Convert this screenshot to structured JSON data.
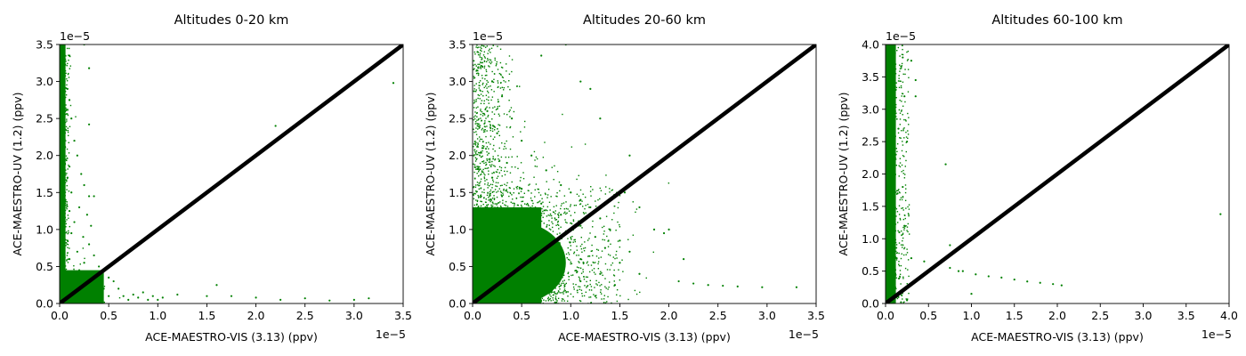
{
  "figure": {
    "panels": [
      {
        "title": "Altitudes 0-20 km",
        "xlabel": "ACE-MAESTRO-VIS (3.13) (ppv)",
        "ylabel": "ACE-MAESTRO-UV (1.2) (ppv)",
        "x_offset_text": "1e−5",
        "y_offset_text": "1e−5",
        "x_tick_labels": [
          "0.0",
          "0.5",
          "1.0",
          "1.5",
          "2.0",
          "2.5",
          "3.0",
          "3.5"
        ],
        "y_tick_labels": [
          "0.0",
          "0.5",
          "1.0",
          "1.5",
          "2.0",
          "2.5",
          "3.0",
          "3.5"
        ]
      },
      {
        "title": "Altitudes 20-60 km",
        "xlabel": "ACE-MAESTRO-VIS (3.13) (ppv)",
        "ylabel": "ACE-MAESTRO-UV (1.2) (ppv)",
        "x_offset_text": "1e−5",
        "y_offset_text": "1e−5",
        "x_tick_labels": [
          "0.0",
          "0.5",
          "1.0",
          "1.5",
          "2.0",
          "2.5",
          "3.0",
          "3.5"
        ],
        "y_tick_labels": [
          "0.0",
          "0.5",
          "1.0",
          "1.5",
          "2.0",
          "2.5",
          "3.0",
          "3.5"
        ]
      },
      {
        "title": "Altitudes 60-100 km",
        "xlabel": "ACE-MAESTRO-VIS (3.13) (ppv)",
        "ylabel": "ACE-MAESTRO-UV (1.2) (ppv)",
        "x_offset_text": "1e−5",
        "y_offset_text": "1e−5",
        "x_tick_labels": [
          "0.0",
          "0.5",
          "1.0",
          "1.5",
          "2.0",
          "2.5",
          "3.0",
          "3.5",
          "4.0"
        ],
        "y_tick_labels": [
          "0.0",
          "0.5",
          "1.0",
          "1.5",
          "2.0",
          "2.5",
          "3.0",
          "3.5",
          "4.0"
        ]
      }
    ]
  },
  "chart_data": [
    {
      "type": "scatter",
      "title": "Altitudes 0-20 km",
      "xlabel": "ACE-MAESTRO-VIS (3.13) (ppv)",
      "ylabel": "ACE-MAESTRO-UV (1.2) (ppv)",
      "axis_scale_factor": 1e-05,
      "xlim": [
        0,
        3.5
      ],
      "ylim": [
        0,
        3.5
      ],
      "x_ticks": [
        0.0,
        0.5,
        1.0,
        1.5,
        2.0,
        2.5,
        3.0,
        3.5
      ],
      "y_ticks": [
        0.0,
        0.5,
        1.0,
        1.5,
        2.0,
        2.5,
        3.0,
        3.5
      ],
      "marker_color": "#008000",
      "reference_line": {
        "description": "1:1 line",
        "color": "#000000",
        "from": [
          0,
          0
        ],
        "to": [
          3.5,
          3.5
        ]
      },
      "grid": false,
      "series": [
        {
          "values": [
            [
              0.02,
              3.45
            ],
            [
              0.03,
              3.2
            ],
            [
              0.05,
              3.0
            ],
            [
              0.08,
              2.9
            ],
            [
              0.1,
              2.75
            ],
            [
              0.04,
              2.6
            ],
            [
              0.12,
              2.5
            ],
            [
              0.06,
              2.35
            ],
            [
              0.15,
              2.2
            ],
            [
              0.05,
              2.1
            ],
            [
              0.18,
              2.0
            ],
            [
              0.03,
              1.95
            ],
            [
              0.1,
              1.85
            ],
            [
              0.22,
              1.75
            ],
            [
              0.08,
              1.7
            ],
            [
              0.25,
              1.6
            ],
            [
              0.04,
              1.55
            ],
            [
              0.12,
              1.5
            ],
            [
              0.3,
              1.45
            ],
            [
              0.06,
              1.4
            ],
            [
              0.2,
              1.3
            ],
            [
              0.1,
              1.25
            ],
            [
              0.28,
              1.2
            ],
            [
              0.05,
              1.15
            ],
            [
              0.15,
              1.1
            ],
            [
              0.32,
              1.05
            ],
            [
              0.02,
              1.0
            ],
            [
              0.12,
              0.95
            ],
            [
              0.24,
              0.9
            ],
            [
              0.08,
              0.85
            ],
            [
              0.3,
              0.8
            ],
            [
              0.04,
              0.75
            ],
            [
              0.18,
              0.7
            ],
            [
              0.35,
              0.65
            ],
            [
              0.1,
              0.6
            ],
            [
              0.25,
              0.55
            ],
            [
              0.4,
              0.5
            ],
            [
              0.05,
              0.5
            ],
            [
              0.2,
              0.45
            ],
            [
              0.45,
              0.45
            ],
            [
              0.1,
              0.4
            ],
            [
              0.3,
              0.4
            ],
            [
              0.5,
              0.35
            ],
            [
              0.15,
              0.35
            ],
            [
              0.38,
              0.3
            ],
            [
              0.55,
              0.3
            ],
            [
              0.2,
              0.25
            ],
            [
              0.45,
              0.2
            ],
            [
              0.6,
              0.2
            ],
            [
              0.1,
              0.15
            ],
            [
              0.3,
              0.15
            ],
            [
              0.5,
              0.1
            ],
            [
              0.65,
              0.1
            ],
            [
              0.2,
              0.05
            ],
            [
              0.4,
              0.05
            ],
            [
              0.7,
              0.05
            ],
            [
              0.75,
              0.12
            ],
            [
              0.8,
              0.08
            ],
            [
              0.85,
              0.15
            ],
            [
              0.9,
              0.05
            ],
            [
              0.95,
              0.1
            ],
            [
              1.0,
              0.05
            ],
            [
              1.05,
              0.08
            ],
            [
              1.2,
              0.12
            ],
            [
              1.5,
              0.1
            ],
            [
              1.6,
              0.25
            ],
            [
              1.75,
              0.1
            ],
            [
              2.0,
              0.08
            ],
            [
              2.25,
              0.05
            ],
            [
              2.5,
              0.07
            ],
            [
              2.75,
              0.04
            ],
            [
              3.0,
              0.05
            ],
            [
              3.15,
              0.07
            ],
            [
              2.2,
              2.4
            ],
            [
              3.4,
              2.98
            ],
            [
              0.3,
              3.18
            ],
            [
              0.3,
              2.42
            ],
            [
              0.35,
              1.45
            ],
            [
              0.25,
              3.5
            ],
            [
              0.1,
              3.35
            ]
          ]
        }
      ]
    },
    {
      "type": "scatter",
      "title": "Altitudes 20-60 km",
      "xlabel": "ACE-MAESTRO-VIS (3.13) (ppv)",
      "ylabel": "ACE-MAESTRO-UV (1.2) (ppv)",
      "axis_scale_factor": 1e-05,
      "xlim": [
        0,
        3.5
      ],
      "ylim": [
        0,
        3.5
      ],
      "x_ticks": [
        0.0,
        0.5,
        1.0,
        1.5,
        2.0,
        2.5,
        3.0,
        3.5
      ],
      "y_ticks": [
        0.0,
        0.5,
        1.0,
        1.5,
        2.0,
        2.5,
        3.0,
        3.5
      ],
      "marker_color": "#008000",
      "reference_line": {
        "description": "1:1 line",
        "color": "#000000",
        "from": [
          0,
          0
        ],
        "to": [
          3.5,
          3.5
        ]
      },
      "grid": false,
      "series": [
        {
          "values": [
            [
              0.05,
              3.4
            ],
            [
              0.1,
              3.2
            ],
            [
              0.2,
              3.0
            ],
            [
              0.3,
              2.8
            ],
            [
              0.15,
              2.6
            ],
            [
              0.4,
              2.5
            ],
            [
              0.25,
              2.3
            ],
            [
              0.5,
              2.2
            ],
            [
              0.1,
              2.1
            ],
            [
              0.6,
              2.0
            ],
            [
              0.35,
              1.9
            ],
            [
              0.75,
              1.8
            ],
            [
              0.2,
              1.7
            ],
            [
              0.9,
              1.6
            ],
            [
              0.5,
              1.55
            ],
            [
              1.0,
              1.5
            ],
            [
              0.3,
              1.45
            ],
            [
              1.1,
              1.4
            ],
            [
              0.7,
              1.35
            ],
            [
              1.2,
              1.3
            ],
            [
              0.15,
              1.25
            ],
            [
              0.9,
              1.2
            ],
            [
              1.3,
              1.15
            ],
            [
              0.4,
              1.1
            ],
            [
              1.1,
              1.05
            ],
            [
              1.4,
              1.0
            ],
            [
              0.6,
              0.95
            ],
            [
              1.25,
              0.9
            ],
            [
              1.5,
              0.85
            ],
            [
              0.2,
              0.8
            ],
            [
              0.85,
              0.8
            ],
            [
              1.35,
              0.75
            ],
            [
              1.6,
              0.7
            ],
            [
              0.5,
              0.65
            ],
            [
              1.1,
              0.6
            ],
            [
              1.5,
              0.55
            ],
            [
              0.3,
              0.5
            ],
            [
              0.9,
              0.45
            ],
            [
              1.3,
              0.4
            ],
            [
              1.7,
              0.4
            ],
            [
              0.6,
              0.35
            ],
            [
              1.1,
              0.3
            ],
            [
              1.45,
              0.25
            ],
            [
              0.2,
              0.2
            ],
            [
              0.8,
              0.15
            ],
            [
              1.25,
              0.1
            ],
            [
              0.45,
              0.05
            ],
            [
              1.55,
              1.5
            ],
            [
              1.7,
              1.3
            ],
            [
              1.85,
              1.0
            ],
            [
              2.15,
              0.6
            ],
            [
              2.1,
              0.3
            ],
            [
              2.25,
              0.27
            ],
            [
              2.4,
              0.25
            ],
            [
              2.55,
              0.24
            ],
            [
              2.7,
              0.23
            ],
            [
              2.95,
              0.22
            ],
            [
              3.3,
              0.22
            ],
            [
              1.95,
              0.95
            ],
            [
              2.0,
              1.0
            ],
            [
              1.1,
              3.0
            ],
            [
              1.3,
              2.5
            ],
            [
              1.6,
              2.0
            ],
            [
              0.7,
              3.35
            ],
            [
              0.95,
              3.5
            ],
            [
              1.2,
              2.9
            ]
          ]
        }
      ]
    },
    {
      "type": "scatter",
      "title": "Altitudes 60-100 km",
      "xlabel": "ACE-MAESTRO-VIS (3.13) (ppv)",
      "ylabel": "ACE-MAESTRO-UV (1.2) (ppv)",
      "axis_scale_factor": 1e-05,
      "xlim": [
        0,
        4.0
      ],
      "ylim": [
        0,
        4.0
      ],
      "x_ticks": [
        0.0,
        0.5,
        1.0,
        1.5,
        2.0,
        2.5,
        3.0,
        3.5,
        4.0
      ],
      "y_ticks": [
        0.0,
        0.5,
        1.0,
        1.5,
        2.0,
        2.5,
        3.0,
        3.5,
        4.0
      ],
      "marker_color": "#008000",
      "reference_line": {
        "description": "1:1 line",
        "color": "#000000",
        "from": [
          0,
          0
        ],
        "to": [
          4.0,
          4.0
        ]
      },
      "grid": false,
      "series": [
        {
          "values": [
            [
              0.02,
              3.95
            ],
            [
              0.05,
              3.7
            ],
            [
              0.08,
              3.5
            ],
            [
              0.12,
              3.3
            ],
            [
              0.04,
              3.1
            ],
            [
              0.1,
              2.9
            ],
            [
              0.15,
              2.7
            ],
            [
              0.06,
              2.5
            ],
            [
              0.12,
              2.3
            ],
            [
              0.03,
              2.1
            ],
            [
              0.09,
              1.9
            ],
            [
              0.14,
              1.7
            ],
            [
              0.05,
              1.5
            ],
            [
              0.11,
              1.3
            ],
            [
              0.16,
              1.1
            ],
            [
              0.07,
              0.9
            ],
            [
              0.13,
              0.7
            ],
            [
              0.04,
              0.5
            ],
            [
              0.1,
              0.3
            ],
            [
              0.15,
              0.1
            ],
            [
              0.2,
              3.8
            ],
            [
              0.22,
              3.2
            ],
            [
              0.25,
              2.5
            ],
            [
              0.2,
              1.8
            ],
            [
              0.22,
              1.2
            ],
            [
              0.3,
              0.7
            ],
            [
              0.45,
              0.65
            ],
            [
              0.6,
              0.6
            ],
            [
              0.75,
              0.55
            ],
            [
              0.9,
              0.5
            ],
            [
              1.05,
              0.45
            ],
            [
              1.2,
              0.42
            ],
            [
              1.35,
              0.4
            ],
            [
              1.5,
              0.37
            ],
            [
              1.65,
              0.34
            ],
            [
              1.8,
              0.32
            ],
            [
              1.95,
              0.3
            ],
            [
              2.05,
              0.28
            ],
            [
              0.35,
              3.45
            ],
            [
              0.3,
              3.75
            ],
            [
              0.35,
              3.2
            ],
            [
              0.75,
              0.9
            ],
            [
              0.85,
              0.5
            ],
            [
              1.0,
              0.15
            ],
            [
              0.7,
              2.15
            ],
            [
              3.9,
              1.38
            ],
            [
              0.25,
              0.05
            ],
            [
              0.18,
              0.02
            ]
          ]
        }
      ]
    }
  ]
}
